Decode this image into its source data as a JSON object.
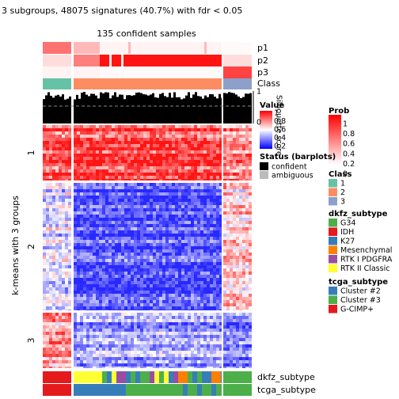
{
  "header": {
    "title": "3 subgroups, 48075 signatures (40.7%) with fdr < 0.05",
    "subtitle": "135 confident samples"
  },
  "row_title": "k-means with 3 groups",
  "groups": [
    "1",
    "2",
    "3"
  ],
  "top_annotations": [
    "p1",
    "p2",
    "p3",
    "Class"
  ],
  "bottom_annotations": [
    "dkfz_subtype",
    "tcga_subtype"
  ],
  "silhouette_label": "Silhouette\nscore",
  "silhouette_ticks": [
    "1",
    "0"
  ],
  "legends": {
    "value": {
      "title": "Value",
      "ticks": [
        "1",
        "0.8",
        "0.6",
        "0.4",
        "0.2"
      ]
    },
    "prob": {
      "title": "Prob",
      "ticks": [
        "1",
        "0.8",
        "0.6",
        "0.4",
        "0.2",
        "0"
      ]
    },
    "status": {
      "title": "Status (barplots)",
      "items": [
        "confident",
        "ambiguous"
      ]
    },
    "class": {
      "title": "Class",
      "items": [
        "1",
        "2",
        "3"
      ]
    },
    "dkfz": {
      "title": "dkfz_subtype",
      "items": [
        "G34",
        "IDH",
        "K27",
        "Mesenchymal",
        "RTK I PDGFRA",
        "RTK II Classic"
      ]
    },
    "tcga": {
      "title": "tcga_subtype",
      "items": [
        "Cluster #2",
        "Cluster #3",
        "G-CIMP+"
      ]
    }
  }
}
